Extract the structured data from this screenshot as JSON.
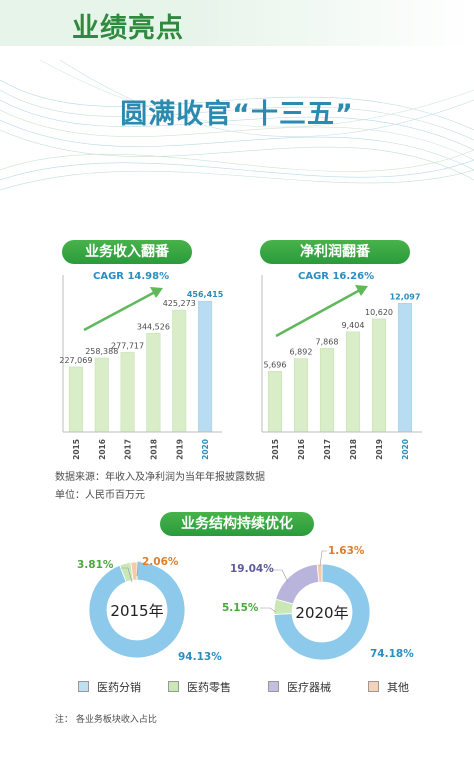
{
  "header": {
    "title": "业绩亮点"
  },
  "hero": {
    "title": "圆满收官“十三五”"
  },
  "chart_data": [
    {
      "type": "bar",
      "title": "业务收入翻番",
      "annotation": "CAGR 14.98%",
      "categories": [
        "2015",
        "2016",
        "2017",
        "2018",
        "2019",
        "2020"
      ],
      "values": [
        227069,
        258388,
        277717,
        344526,
        425273,
        456415
      ],
      "value_labels": [
        "227,069",
        "258,388",
        "277,717",
        "344,526",
        "425,273",
        "456,415"
      ],
      "ylim": [
        0,
        520000
      ],
      "highlight_index": 5
    },
    {
      "type": "bar",
      "title": "净利润翻番",
      "annotation": "CAGR 16.26%",
      "categories": [
        "2015",
        "2016",
        "2017",
        "2018",
        "2019",
        "2020"
      ],
      "values": [
        5696,
        6892,
        7868,
        9404,
        10620,
        12097
      ],
      "value_labels": [
        "5,696",
        "6,892",
        "7,868",
        "9,404",
        "10,620",
        "12,097"
      ],
      "ylim": [
        0,
        14000
      ],
      "highlight_index": 5
    },
    {
      "type": "pie",
      "title": "业务结构持续优化",
      "center_label": "2015年",
      "slices": [
        {
          "name": "医药分销",
          "value": 94.13,
          "label": "94.13%"
        },
        {
          "name": "医药零售",
          "value": 3.81,
          "label": "3.81%"
        },
        {
          "name": "医疗器械",
          "value": 0,
          "label": ""
        },
        {
          "name": "其他",
          "value": 2.06,
          "label": "2.06%"
        }
      ]
    },
    {
      "type": "pie",
      "title": "业务结构持续优化",
      "center_label": "2020年",
      "slices": [
        {
          "name": "医药分销",
          "value": 74.18,
          "label": "74.18%"
        },
        {
          "name": "医药零售",
          "value": 5.15,
          "label": "5.15%"
        },
        {
          "name": "医疗器械",
          "value": 19.04,
          "label": "19.04%"
        },
        {
          "name": "其他",
          "value": 1.63,
          "label": "1.63%"
        }
      ]
    }
  ],
  "notes": {
    "source": "数据来源：年收入及净利润为当年年报披露数据",
    "unit": "单位：人民币百万元",
    "footnote": "注：   各业务板块收入占比"
  },
  "legend": [
    {
      "name": "医药分销",
      "color": "#bfe0f2"
    },
    {
      "name": "医药零售",
      "color": "#c9e8b6"
    },
    {
      "name": "医疗器械",
      "color": "#c2bfe0"
    },
    {
      "name": "其他",
      "color": "#f6d2b8"
    }
  ],
  "colors": {
    "bar": "#d8edc8",
    "bar_highlight": "#b8dcf2",
    "label_highlight": "#2a8ec0",
    "donut_distribution": "#8cc9ea",
    "donut_retail": "#c9e8b6",
    "donut_devices": "#b8b4dc",
    "donut_other": "#f6c9a8"
  }
}
